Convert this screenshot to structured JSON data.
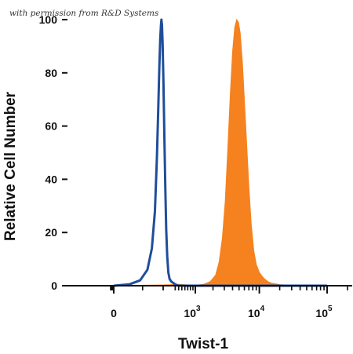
{
  "watermark": "with permission from R&D Systems",
  "chart_data": {
    "type": "area",
    "title": "",
    "xlabel": "Twist-1",
    "ylabel": "Relative Cell Number",
    "x_scale": "biexponential",
    "y_ticks": [
      0,
      20,
      40,
      60,
      80,
      100
    ],
    "ylim": [
      0,
      100
    ],
    "x_ticks": [
      {
        "base": "0",
        "exp": ""
      },
      {
        "base": "10",
        "exp": "3"
      },
      {
        "base": "10",
        "exp": "4"
      },
      {
        "base": "10",
        "exp": "5"
      }
    ],
    "grid": false,
    "legend": "none",
    "series": [
      {
        "style": "outline",
        "color": "#1f4e99",
        "points": [
          [
            0,
            0
          ],
          [
            50,
            0.5
          ],
          [
            90,
            2
          ],
          [
            120,
            6
          ],
          [
            140,
            14
          ],
          [
            155,
            28
          ],
          [
            165,
            48
          ],
          [
            172,
            66
          ],
          [
            178,
            82
          ],
          [
            183,
            93
          ],
          [
            187,
            98
          ],
          [
            190,
            100
          ],
          [
            193,
            98
          ],
          [
            197,
            91
          ],
          [
            202,
            76
          ],
          [
            208,
            55
          ],
          [
            214,
            36
          ],
          [
            220,
            21
          ],
          [
            227,
            11
          ],
          [
            235,
            5
          ],
          [
            245,
            2.5
          ],
          [
            260,
            1.5
          ],
          [
            280,
            1
          ],
          [
            300,
            0.5
          ],
          [
            330,
            0.2
          ],
          [
            400,
            0
          ],
          [
            1000,
            0
          ],
          [
            3000,
            0
          ],
          [
            10000,
            0
          ],
          [
            100000,
            0
          ]
        ]
      },
      {
        "style": "filled",
        "color": "#f5821f",
        "points": [
          [
            0,
            0
          ],
          [
            200,
            0.3
          ],
          [
            400,
            0.5
          ],
          [
            700,
            0.3
          ],
          [
            1000,
            0.2
          ],
          [
            1400,
            0.5
          ],
          [
            1800,
            1.5
          ],
          [
            2200,
            4
          ],
          [
            2500,
            9
          ],
          [
            2800,
            18
          ],
          [
            3100,
            32
          ],
          [
            3400,
            52
          ],
          [
            3700,
            72
          ],
          [
            4000,
            88
          ],
          [
            4300,
            97
          ],
          [
            4600,
            100
          ],
          [
            4900,
            99
          ],
          [
            5200,
            95
          ],
          [
            5600,
            84
          ],
          [
            6000,
            70
          ],
          [
            6500,
            53
          ],
          [
            7000,
            37
          ],
          [
            7600,
            23
          ],
          [
            8300,
            13
          ],
          [
            9000,
            8
          ],
          [
            10000,
            5
          ],
          [
            11000,
            3.5
          ],
          [
            12000,
            2.5
          ],
          [
            13500,
            1.5
          ],
          [
            15000,
            1
          ],
          [
            20000,
            0.4
          ],
          [
            30000,
            0.1
          ],
          [
            100000,
            0
          ]
        ]
      }
    ]
  }
}
